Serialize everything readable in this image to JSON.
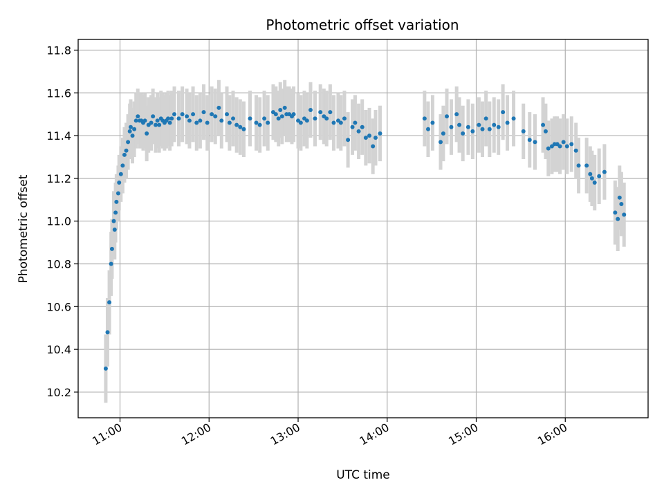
{
  "chart_data": {
    "type": "scatter",
    "title": "Photometric offset variation",
    "xlabel": "UTC time",
    "ylabel": "Photometric offset",
    "grid": true,
    "x_unit": "hours UTC",
    "xlim": [
      10.53,
      16.93
    ],
    "ylim": [
      10.08,
      11.85
    ],
    "xticks": [
      {
        "value": 11,
        "label": "11:00"
      },
      {
        "value": 12,
        "label": "12:00"
      },
      {
        "value": 13,
        "label": "13:00"
      },
      {
        "value": 14,
        "label": "14:00"
      },
      {
        "value": 15,
        "label": "15:00"
      },
      {
        "value": 16,
        "label": "16:00"
      }
    ],
    "yticks": [
      {
        "value": 10.2,
        "label": "10.2"
      },
      {
        "value": 10.4,
        "label": "10.4"
      },
      {
        "value": 10.6,
        "label": "10.6"
      },
      {
        "value": 10.8,
        "label": "10.8"
      },
      {
        "value": 11.0,
        "label": "11.0"
      },
      {
        "value": 11.2,
        "label": "11.2"
      },
      {
        "value": 11.4,
        "label": "11.4"
      },
      {
        "value": 11.6,
        "label": "11.6"
      },
      {
        "value": 11.8,
        "label": "11.8"
      }
    ],
    "colors": {
      "points": "#1f77b4",
      "errorbars": "#d3d3d3"
    },
    "points": [
      [
        10.84,
        10.31,
        0.16
      ],
      [
        10.86,
        10.48,
        0.16
      ],
      [
        10.88,
        10.62,
        0.15
      ],
      [
        10.9,
        10.8,
        0.15
      ],
      [
        10.91,
        10.87,
        0.14
      ],
      [
        10.93,
        11.0,
        0.14
      ],
      [
        10.94,
        10.96,
        0.14
      ],
      [
        10.95,
        11.04,
        0.14
      ],
      [
        10.96,
        11.09,
        0.13
      ],
      [
        10.98,
        11.13,
        0.13
      ],
      [
        10.99,
        11.18,
        0.13
      ],
      [
        11.01,
        11.22,
        0.13
      ],
      [
        11.03,
        11.26,
        0.13
      ],
      [
        11.05,
        11.31,
        0.13
      ],
      [
        11.07,
        11.33,
        0.13
      ],
      [
        11.09,
        11.37,
        0.13
      ],
      [
        11.11,
        11.42,
        0.13
      ],
      [
        11.12,
        11.44,
        0.13
      ],
      [
        11.14,
        11.4,
        0.13
      ],
      [
        11.16,
        11.43,
        0.13
      ],
      [
        11.18,
        11.47,
        0.13
      ],
      [
        11.2,
        11.49,
        0.13
      ],
      [
        11.22,
        11.47,
        0.13
      ],
      [
        11.24,
        11.47,
        0.13
      ],
      [
        11.26,
        11.46,
        0.13
      ],
      [
        11.28,
        11.47,
        0.13
      ],
      [
        11.3,
        11.41,
        0.13
      ],
      [
        11.32,
        11.45,
        0.13
      ],
      [
        11.35,
        11.46,
        0.13
      ],
      [
        11.37,
        11.49,
        0.13
      ],
      [
        11.4,
        11.45,
        0.13
      ],
      [
        11.42,
        11.47,
        0.13
      ],
      [
        11.44,
        11.45,
        0.13
      ],
      [
        11.46,
        11.48,
        0.13
      ],
      [
        11.48,
        11.47,
        0.13
      ],
      [
        11.5,
        11.46,
        0.13
      ],
      [
        11.52,
        11.47,
        0.13
      ],
      [
        11.54,
        11.48,
        0.13
      ],
      [
        11.56,
        11.46,
        0.13
      ],
      [
        11.58,
        11.48,
        0.13
      ],
      [
        11.61,
        11.5,
        0.13
      ],
      [
        11.66,
        11.48,
        0.13
      ],
      [
        11.7,
        11.5,
        0.13
      ],
      [
        11.75,
        11.49,
        0.13
      ],
      [
        11.78,
        11.47,
        0.13
      ],
      [
        11.82,
        11.5,
        0.13
      ],
      [
        11.86,
        11.46,
        0.13
      ],
      [
        11.9,
        11.47,
        0.13
      ],
      [
        11.94,
        11.51,
        0.13
      ],
      [
        11.98,
        11.46,
        0.13
      ],
      [
        12.03,
        11.5,
        0.13
      ],
      [
        12.07,
        11.49,
        0.13
      ],
      [
        12.11,
        11.53,
        0.13
      ],
      [
        12.14,
        11.47,
        0.13
      ],
      [
        12.2,
        11.5,
        0.13
      ],
      [
        12.23,
        11.46,
        0.13
      ],
      [
        12.27,
        11.48,
        0.13
      ],
      [
        12.31,
        11.45,
        0.13
      ],
      [
        12.35,
        11.44,
        0.13
      ],
      [
        12.39,
        11.43,
        0.13
      ],
      [
        12.46,
        11.48,
        0.13
      ],
      [
        12.53,
        11.46,
        0.13
      ],
      [
        12.57,
        11.45,
        0.13
      ],
      [
        12.62,
        11.48,
        0.13
      ],
      [
        12.66,
        11.46,
        0.13
      ],
      [
        12.72,
        11.51,
        0.13
      ],
      [
        12.75,
        11.5,
        0.13
      ],
      [
        12.78,
        11.48,
        0.13
      ],
      [
        12.8,
        11.52,
        0.13
      ],
      [
        12.82,
        11.49,
        0.13
      ],
      [
        12.85,
        11.53,
        0.13
      ],
      [
        12.87,
        11.5,
        0.13
      ],
      [
        12.9,
        11.5,
        0.13
      ],
      [
        12.93,
        11.49,
        0.13
      ],
      [
        12.95,
        11.5,
        0.13
      ],
      [
        13.0,
        11.47,
        0.13
      ],
      [
        13.03,
        11.46,
        0.13
      ],
      [
        13.07,
        11.48,
        0.13
      ],
      [
        13.1,
        11.47,
        0.13
      ],
      [
        13.14,
        11.52,
        0.13
      ],
      [
        13.19,
        11.48,
        0.13
      ],
      [
        13.25,
        11.51,
        0.13
      ],
      [
        13.29,
        11.49,
        0.13
      ],
      [
        13.32,
        11.48,
        0.13
      ],
      [
        13.36,
        11.51,
        0.13
      ],
      [
        13.4,
        11.46,
        0.13
      ],
      [
        13.45,
        11.47,
        0.13
      ],
      [
        13.48,
        11.46,
        0.13
      ],
      [
        13.52,
        11.48,
        0.13
      ],
      [
        13.56,
        11.38,
        0.13
      ],
      [
        13.61,
        11.44,
        0.13
      ],
      [
        13.64,
        11.46,
        0.13
      ],
      [
        13.68,
        11.42,
        0.13
      ],
      [
        13.72,
        11.44,
        0.13
      ],
      [
        13.76,
        11.39,
        0.13
      ],
      [
        13.8,
        11.4,
        0.13
      ],
      [
        13.84,
        11.35,
        0.13
      ],
      [
        13.87,
        11.39,
        0.13
      ],
      [
        13.92,
        11.41,
        0.13
      ],
      [
        14.42,
        11.48,
        0.13
      ],
      [
        14.46,
        11.43,
        0.13
      ],
      [
        14.51,
        11.46,
        0.13
      ],
      [
        14.6,
        11.37,
        0.13
      ],
      [
        14.63,
        11.41,
        0.13
      ],
      [
        14.67,
        11.49,
        0.13
      ],
      [
        14.72,
        11.44,
        0.13
      ],
      [
        14.78,
        11.5,
        0.13
      ],
      [
        14.81,
        11.45,
        0.13
      ],
      [
        14.85,
        11.41,
        0.13
      ],
      [
        14.91,
        11.44,
        0.13
      ],
      [
        14.96,
        11.42,
        0.13
      ],
      [
        15.03,
        11.45,
        0.13
      ],
      [
        15.07,
        11.43,
        0.13
      ],
      [
        15.11,
        11.48,
        0.13
      ],
      [
        15.15,
        11.43,
        0.13
      ],
      [
        15.2,
        11.45,
        0.13
      ],
      [
        15.25,
        11.44,
        0.13
      ],
      [
        15.3,
        11.51,
        0.13
      ],
      [
        15.35,
        11.46,
        0.13
      ],
      [
        15.42,
        11.48,
        0.13
      ],
      [
        15.53,
        11.42,
        0.13
      ],
      [
        15.6,
        11.38,
        0.13
      ],
      [
        15.66,
        11.37,
        0.13
      ],
      [
        15.75,
        11.45,
        0.13
      ],
      [
        15.78,
        11.42,
        0.13
      ],
      [
        15.81,
        11.34,
        0.13
      ],
      [
        15.85,
        11.35,
        0.13
      ],
      [
        15.88,
        11.36,
        0.13
      ],
      [
        15.91,
        11.36,
        0.13
      ],
      [
        15.94,
        11.35,
        0.13
      ],
      [
        15.98,
        11.37,
        0.13
      ],
      [
        16.02,
        11.35,
        0.13
      ],
      [
        16.07,
        11.36,
        0.13
      ],
      [
        16.12,
        11.33,
        0.13
      ],
      [
        16.15,
        11.26,
        0.13
      ],
      [
        16.24,
        11.26,
        0.13
      ],
      [
        16.28,
        11.22,
        0.13
      ],
      [
        16.3,
        11.2,
        0.13
      ],
      [
        16.33,
        11.18,
        0.13
      ],
      [
        16.38,
        11.21,
        0.13
      ],
      [
        16.44,
        11.23,
        0.13
      ],
      [
        16.56,
        11.04,
        0.15
      ],
      [
        16.59,
        11.01,
        0.15
      ],
      [
        16.61,
        11.11,
        0.15
      ],
      [
        16.63,
        11.08,
        0.15
      ],
      [
        16.66,
        11.03,
        0.15
      ]
    ]
  }
}
